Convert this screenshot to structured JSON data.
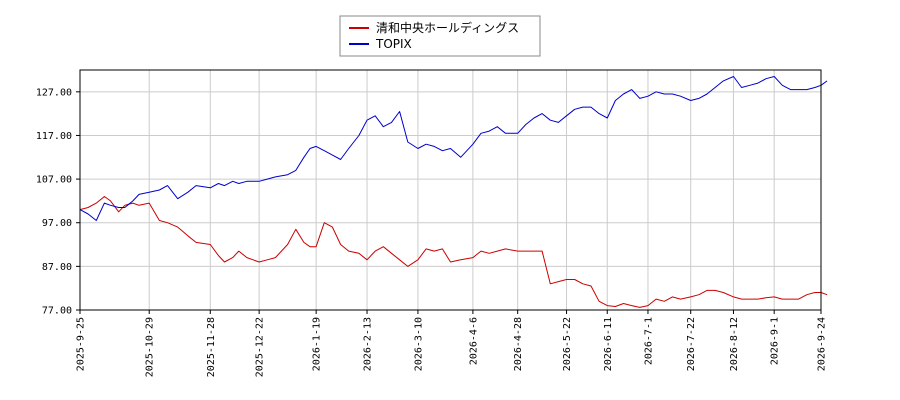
{
  "chart_data": {
    "type": "line",
    "title": "",
    "xlabel": "",
    "ylabel": "",
    "ylim": [
      77,
      132
    ],
    "grid": true,
    "legend_position": "top-center",
    "y_ticks": [
      "127.00",
      "117.00",
      "107.00",
      "97.00",
      "87.00",
      "77.00"
    ],
    "x_tick_labels": [
      "2025-9-25",
      "2025-10-29",
      "2025-11-28",
      "2025-12-22",
      "2026-1-19",
      "2026-2-13",
      "2026-3-10",
      "2026-4-6",
      "2026-4-28",
      "2026-5-22",
      "2026-6-11",
      "2026-7-1",
      "2026-7-22",
      "2026-8-12",
      "2026-9-1",
      "2026-9-24"
    ],
    "series": [
      {
        "name": "清和中央ホールディングス",
        "color": "#cc0000",
        "points": [
          [
            "2025-9-25",
            100
          ],
          [
            "2025-9-29",
            100.5
          ],
          [
            "2025-10-3",
            101.5
          ],
          [
            "2025-10-7",
            103
          ],
          [
            "2025-10-10",
            102
          ],
          [
            "2025-10-14",
            99.5
          ],
          [
            "2025-10-17",
            101
          ],
          [
            "2025-10-21",
            101.5
          ],
          [
            "2025-10-24",
            101
          ],
          [
            "2025-10-29",
            101.5
          ],
          [
            "2025-11-3",
            97.5
          ],
          [
            "2025-11-7",
            97
          ],
          [
            "2025-11-12",
            96
          ],
          [
            "2025-11-17",
            94
          ],
          [
            "2025-11-21",
            92.5
          ],
          [
            "2025-11-28",
            92
          ],
          [
            "2025-12-2",
            89.5
          ],
          [
            "2025-12-5",
            88
          ],
          [
            "2025-12-9",
            89
          ],
          [
            "2025-12-12",
            90.5
          ],
          [
            "2025-12-16",
            89
          ],
          [
            "2025-12-22",
            88
          ],
          [
            "2025-12-26",
            88.5
          ],
          [
            "2025-12-30",
            89
          ],
          [
            "2026-1-5",
            92
          ],
          [
            "2026-1-9",
            95.5
          ],
          [
            "2026-1-13",
            92.5
          ],
          [
            "2026-1-16",
            91.5
          ],
          [
            "2026-1-19",
            91.5
          ],
          [
            "2026-1-23",
            97
          ],
          [
            "2026-1-27",
            96
          ],
          [
            "2026-1-31",
            92
          ],
          [
            "2026-2-4",
            90.5
          ],
          [
            "2026-2-9",
            90
          ],
          [
            "2026-2-13",
            88.5
          ],
          [
            "2026-2-17",
            90.5
          ],
          [
            "2026-2-21",
            91.5
          ],
          [
            "2026-2-25",
            90
          ],
          [
            "2026-3-1",
            88.5
          ],
          [
            "2026-3-5",
            87
          ],
          [
            "2026-3-10",
            88.5
          ],
          [
            "2026-3-14",
            91
          ],
          [
            "2026-3-18",
            90.5
          ],
          [
            "2026-3-22",
            91
          ],
          [
            "2026-3-26",
            88
          ],
          [
            "2026-3-31",
            88.5
          ],
          [
            "2026-4-6",
            89
          ],
          [
            "2026-4-10",
            90.5
          ],
          [
            "2026-4-14",
            90
          ],
          [
            "2026-4-18",
            90.5
          ],
          [
            "2026-4-22",
            91
          ],
          [
            "2026-4-28",
            90.5
          ],
          [
            "2026-5-2",
            90.5
          ],
          [
            "2026-5-6",
            90.5
          ],
          [
            "2026-5-10",
            90.5
          ],
          [
            "2026-5-14",
            83
          ],
          [
            "2026-5-18",
            83.5
          ],
          [
            "2026-5-22",
            84
          ],
          [
            "2026-5-26",
            84
          ],
          [
            "2026-5-30",
            83
          ],
          [
            "2026-6-3",
            82.5
          ],
          [
            "2026-6-7",
            79
          ],
          [
            "2026-6-11",
            78
          ],
          [
            "2026-6-15",
            77.8
          ],
          [
            "2026-6-19",
            78.5
          ],
          [
            "2026-6-23",
            78
          ],
          [
            "2026-6-27",
            77.6
          ],
          [
            "2026-7-1",
            78
          ],
          [
            "2026-7-5",
            79.5
          ],
          [
            "2026-7-9",
            79
          ],
          [
            "2026-7-13",
            80
          ],
          [
            "2026-7-17",
            79.5
          ],
          [
            "2026-7-22",
            80
          ],
          [
            "2026-7-26",
            80.5
          ],
          [
            "2026-7-30",
            81.5
          ],
          [
            "2026-8-3",
            81.5
          ],
          [
            "2026-8-7",
            81
          ],
          [
            "2026-8-12",
            80
          ],
          [
            "2026-8-16",
            79.5
          ],
          [
            "2026-8-20",
            79.5
          ],
          [
            "2026-8-24",
            79.5
          ],
          [
            "2026-8-28",
            79.8
          ],
          [
            "2026-9-1",
            80
          ],
          [
            "2026-9-5",
            79.5
          ],
          [
            "2026-9-9",
            79.5
          ],
          [
            "2026-9-13",
            79.5
          ],
          [
            "2026-9-17",
            80.5
          ],
          [
            "2026-9-21",
            81
          ],
          [
            "2026-9-24",
            81
          ],
          [
            "2026-9-27",
            80.5
          ]
        ]
      },
      {
        "name": "TOPIX",
        "color": "#0000cc",
        "points": [
          [
            "2025-9-25",
            100
          ],
          [
            "2025-9-29",
            99
          ],
          [
            "2025-10-3",
            97.5
          ],
          [
            "2025-10-7",
            101.5
          ],
          [
            "2025-10-10",
            101
          ],
          [
            "2025-10-14",
            100.5
          ],
          [
            "2025-10-17",
            100.5
          ],
          [
            "2025-10-21",
            102
          ],
          [
            "2025-10-24",
            103.5
          ],
          [
            "2025-10-29",
            104
          ],
          [
            "2025-11-3",
            104.5
          ],
          [
            "2025-11-7",
            105.5
          ],
          [
            "2025-11-12",
            102.5
          ],
          [
            "2025-11-17",
            104
          ],
          [
            "2025-11-21",
            105.5
          ],
          [
            "2025-11-28",
            105
          ],
          [
            "2025-12-2",
            106
          ],
          [
            "2025-12-5",
            105.5
          ],
          [
            "2025-12-9",
            106.5
          ],
          [
            "2025-12-12",
            106
          ],
          [
            "2025-12-16",
            106.5
          ],
          [
            "2025-12-22",
            106.5
          ],
          [
            "2025-12-26",
            107
          ],
          [
            "2025-12-30",
            107.5
          ],
          [
            "2026-1-5",
            108
          ],
          [
            "2026-1-9",
            109
          ],
          [
            "2026-1-13",
            112
          ],
          [
            "2026-1-16",
            114
          ],
          [
            "2026-1-19",
            114.5
          ],
          [
            "2026-1-23",
            113.5
          ],
          [
            "2026-1-27",
            112.5
          ],
          [
            "2026-1-31",
            111.5
          ],
          [
            "2026-2-4",
            114
          ],
          [
            "2026-2-9",
            117
          ],
          [
            "2026-2-13",
            120.5
          ],
          [
            "2026-2-17",
            121.5
          ],
          [
            "2026-2-21",
            119
          ],
          [
            "2026-2-25",
            120
          ],
          [
            "2026-3-1",
            122.5
          ],
          [
            "2026-3-5",
            115.5
          ],
          [
            "2026-3-10",
            114
          ],
          [
            "2026-3-14",
            115
          ],
          [
            "2026-3-18",
            114.5
          ],
          [
            "2026-3-22",
            113.5
          ],
          [
            "2026-3-26",
            114
          ],
          [
            "2026-3-31",
            112
          ],
          [
            "2026-4-6",
            115
          ],
          [
            "2026-4-10",
            117.5
          ],
          [
            "2026-4-14",
            118
          ],
          [
            "2026-4-18",
            119
          ],
          [
            "2026-4-22",
            117.5
          ],
          [
            "2026-4-28",
            117.5
          ],
          [
            "2026-5-2",
            119.5
          ],
          [
            "2026-5-6",
            121
          ],
          [
            "2026-5-10",
            122
          ],
          [
            "2026-5-14",
            120.5
          ],
          [
            "2026-5-18",
            120
          ],
          [
            "2026-5-22",
            121.5
          ],
          [
            "2026-5-26",
            123
          ],
          [
            "2026-5-30",
            123.5
          ],
          [
            "2026-6-3",
            123.5
          ],
          [
            "2026-6-7",
            122
          ],
          [
            "2026-6-11",
            121
          ],
          [
            "2026-6-15",
            125
          ],
          [
            "2026-6-19",
            126.5
          ],
          [
            "2026-6-23",
            127.5
          ],
          [
            "2026-6-27",
            125.5
          ],
          [
            "2026-7-1",
            126
          ],
          [
            "2026-7-5",
            127
          ],
          [
            "2026-7-9",
            126.5
          ],
          [
            "2026-7-13",
            126.5
          ],
          [
            "2026-7-17",
            126
          ],
          [
            "2026-7-22",
            125
          ],
          [
            "2026-7-26",
            125.5
          ],
          [
            "2026-7-30",
            126.5
          ],
          [
            "2026-8-3",
            128
          ],
          [
            "2026-8-7",
            129.5
          ],
          [
            "2026-8-12",
            130.5
          ],
          [
            "2026-8-16",
            128
          ],
          [
            "2026-8-20",
            128.5
          ],
          [
            "2026-8-24",
            129
          ],
          [
            "2026-8-28",
            130
          ],
          [
            "2026-9-1",
            130.5
          ],
          [
            "2026-9-5",
            128.5
          ],
          [
            "2026-9-9",
            127.5
          ],
          [
            "2026-9-13",
            127.5
          ],
          [
            "2026-9-17",
            127.5
          ],
          [
            "2026-9-21",
            128
          ],
          [
            "2026-9-24",
            128.5
          ],
          [
            "2026-9-27",
            129.5
          ]
        ]
      }
    ]
  }
}
